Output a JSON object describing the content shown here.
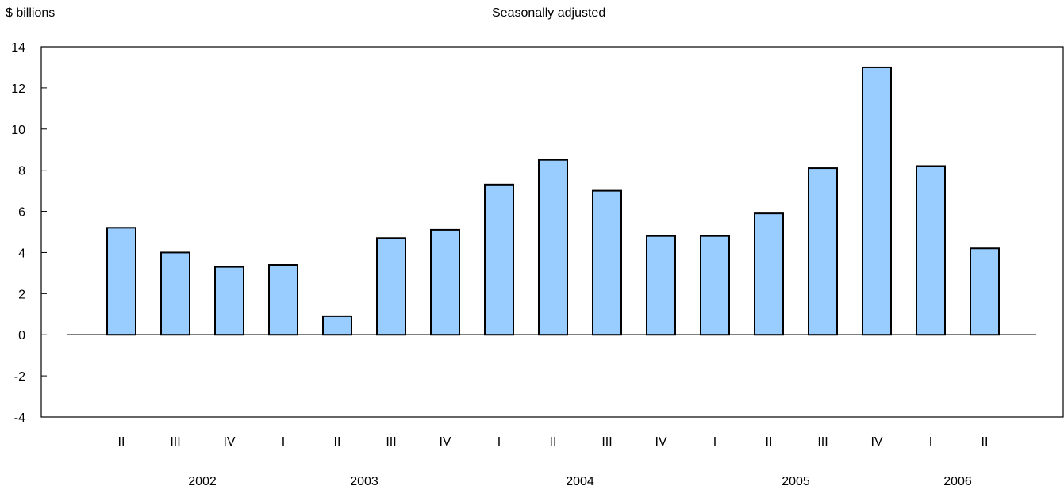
{
  "chart_data": {
    "type": "bar",
    "ylabel": "$ billions",
    "subtitle": "Seasonally adjusted",
    "ylim": [
      -4,
      14
    ],
    "yticks": [
      -4,
      -2,
      0,
      2,
      4,
      6,
      8,
      10,
      12,
      14
    ],
    "categories": [
      "II",
      "III",
      "IV",
      "I",
      "II",
      "III",
      "IV",
      "I",
      "II",
      "III",
      "IV",
      "I",
      "II",
      "III",
      "IV",
      "I",
      "II"
    ],
    "values": [
      5.2,
      4.0,
      3.3,
      3.4,
      0.9,
      4.7,
      5.1,
      7.3,
      8.5,
      7.0,
      4.8,
      4.8,
      5.9,
      8.1,
      13.0,
      8.2,
      4.2
    ],
    "years": [
      {
        "label": "2002",
        "after_index": 1
      },
      {
        "label": "2003",
        "after_index": 4
      },
      {
        "label": "2004",
        "after_index": 8
      },
      {
        "label": "2005",
        "after_index": 12
      },
      {
        "label": "2006",
        "after_index": 15
      }
    ],
    "bar_fill": "#99ccff",
    "bar_stroke": "#000000",
    "grid": false,
    "legend": "none"
  }
}
